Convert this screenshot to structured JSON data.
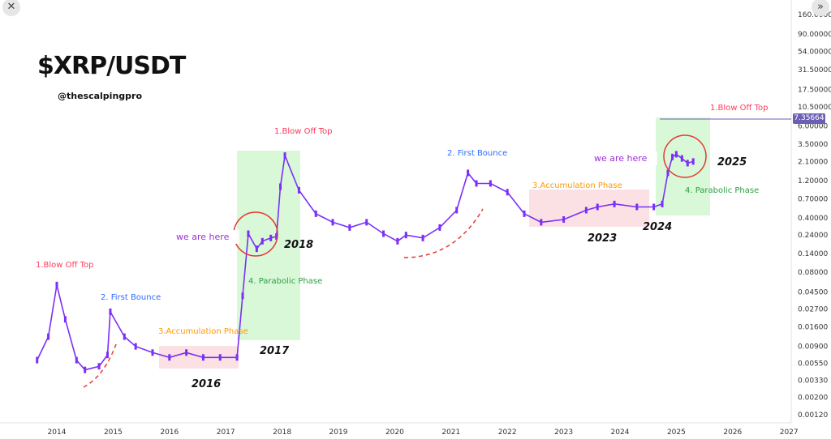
{
  "window": {
    "close_icon": "close-icon",
    "expand_icon": "double-chevron-right-icon"
  },
  "title": "$XRP/USDT",
  "handle": "@thescalpingpro",
  "current_price_tag": "7.35664",
  "colors": {
    "candle": "#7b2ff7",
    "blow_off": "#ff3b5c",
    "bounce": "#2f6bff",
    "accumulation": "#ff9800",
    "parabolic": "#2ea043",
    "we_are_here": "#9b30d9",
    "green_zone": "#b8f3b8",
    "pink_zone": "#fad4d8",
    "circle": "#e53935",
    "price_line": "#6a5fb5"
  },
  "chart_data": {
    "type": "line",
    "y_scale": "log",
    "x_axis": {
      "ticks": [
        "2014",
        "2015",
        "2016",
        "2017",
        "2018",
        "2019",
        "2020",
        "2021",
        "2022",
        "2023",
        "2024",
        "2025",
        "2026",
        "2027"
      ]
    },
    "y_axis": {
      "ticks": [
        "160.00000",
        "90.00000",
        "54.00000",
        "31.50000",
        "17.50000",
        "10.50000",
        "6.00000",
        "3.50000",
        "2.10000",
        "1.20000",
        "0.70000",
        "0.40000",
        "0.24000",
        "0.14000",
        "0.08000",
        "0.04500",
        "0.02700",
        "0.01600",
        "0.00900",
        "0.00550",
        "0.00330",
        "0.00200",
        "0.00120"
      ]
    },
    "series": [
      {
        "x": [
          2013.65,
          2013.85,
          2014.0,
          2014.15,
          2014.35,
          2014.5,
          2014.75,
          2014.9,
          2014.95,
          2015.2,
          2015.4,
          2015.7,
          2016.0,
          2016.3,
          2016.6,
          2016.9,
          2017.2,
          2017.3,
          2017.4,
          2017.55,
          2017.65,
          2017.8,
          2017.9,
          2017.97,
          2018.05,
          2018.3,
          2018.6,
          2018.9,
          2019.2,
          2019.5,
          2019.8,
          2020.05,
          2020.2,
          2020.5,
          2020.8,
          2021.1,
          2021.3,
          2021.45,
          2021.7,
          2022.0,
          2022.3,
          2022.6,
          2023.0,
          2023.4,
          2023.6,
          2023.9,
          2024.3,
          2024.6,
          2024.75,
          2024.85,
          2024.93,
          2025.0,
          2025.1,
          2025.2,
          2025.3
        ],
        "y": [
          0.006,
          0.012,
          0.055,
          0.02,
          0.006,
          0.0045,
          0.005,
          0.007,
          0.025,
          0.012,
          0.009,
          0.0075,
          0.0065,
          0.0075,
          0.0065,
          0.0065,
          0.0065,
          0.04,
          0.25,
          0.16,
          0.2,
          0.22,
          0.23,
          1.0,
          2.5,
          0.9,
          0.45,
          0.35,
          0.3,
          0.35,
          0.25,
          0.2,
          0.24,
          0.22,
          0.3,
          0.5,
          1.5,
          1.1,
          1.1,
          0.85,
          0.45,
          0.35,
          0.38,
          0.5,
          0.55,
          0.6,
          0.55,
          0.55,
          0.6,
          1.5,
          2.4,
          2.6,
          2.3,
          2.0,
          2.1
        ]
      }
    ],
    "annotations": [
      {
        "id": "blow_off_1",
        "text": "1.Blow Off Top"
      },
      {
        "id": "bounce_1",
        "text": "2. First Bounce"
      },
      {
        "id": "accum_1",
        "text": "3.Accumulation Phase"
      },
      {
        "id": "year_2016",
        "text": "2016"
      },
      {
        "id": "year_2017",
        "text": "2017"
      },
      {
        "id": "parabolic_1",
        "text": "4. Parabolic Phase"
      },
      {
        "id": "we_here_1",
        "text": "we are here"
      },
      {
        "id": "year_2018",
        "text": "2018"
      },
      {
        "id": "blow_off_2",
        "text": "1.Blow Off Top"
      },
      {
        "id": "bounce_2",
        "text": "2. First Bounce"
      },
      {
        "id": "accum_2",
        "text": "3.Accumulation Phase"
      },
      {
        "id": "year_2023",
        "text": "2023"
      },
      {
        "id": "year_2024",
        "text": "2024"
      },
      {
        "id": "we_here_2",
        "text": "we are here"
      },
      {
        "id": "year_2025",
        "text": "2025"
      },
      {
        "id": "parabolic_2",
        "text": "4. Parabolic Phase"
      },
      {
        "id": "blow_off_3",
        "text": "1.Blow Off Top"
      }
    ]
  }
}
